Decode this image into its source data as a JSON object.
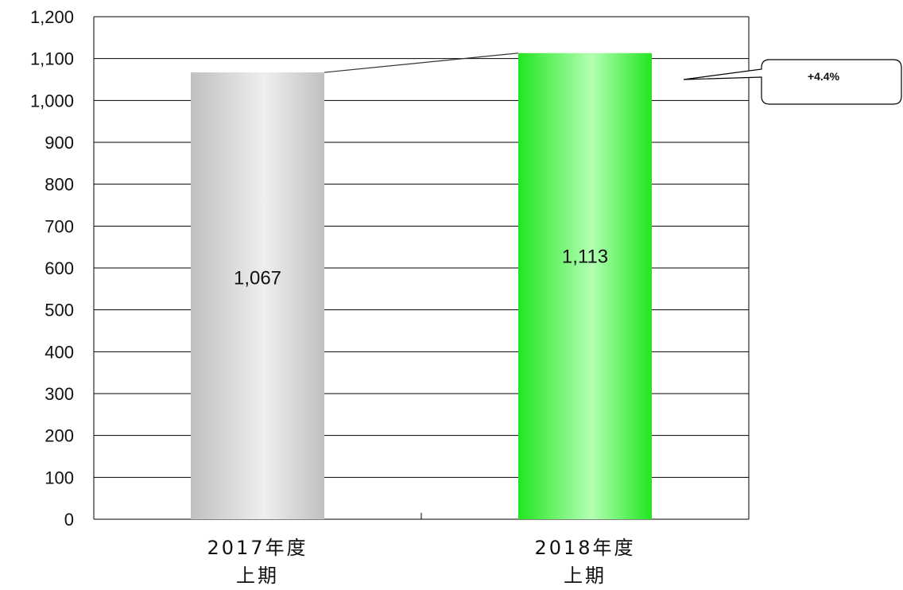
{
  "chart_data": {
    "type": "bar",
    "categories": [
      [
        "2017年度",
        "上期"
      ],
      [
        "2018年度",
        "上期"
      ]
    ],
    "values": [
      1067,
      1113
    ],
    "data_labels": [
      "1,067",
      "1,113"
    ],
    "ylim": [
      0,
      1200
    ],
    "ytick_step": 100,
    "ytick_labels": [
      "0",
      "100",
      "200",
      "300",
      "400",
      "500",
      "600",
      "700",
      "800",
      "900",
      "1,000",
      "1,100",
      "1,200"
    ],
    "grid": true,
    "legend": "none",
    "bar_colors": [
      "#c0c0c0",
      "#22e622"
    ],
    "bar_highlight_colors": [
      "#efefef",
      "#b3ffb3"
    ],
    "annotation": {
      "text": "+4.4%",
      "connects": "bar-top-line and callout pointing at 2018 bar"
    }
  }
}
